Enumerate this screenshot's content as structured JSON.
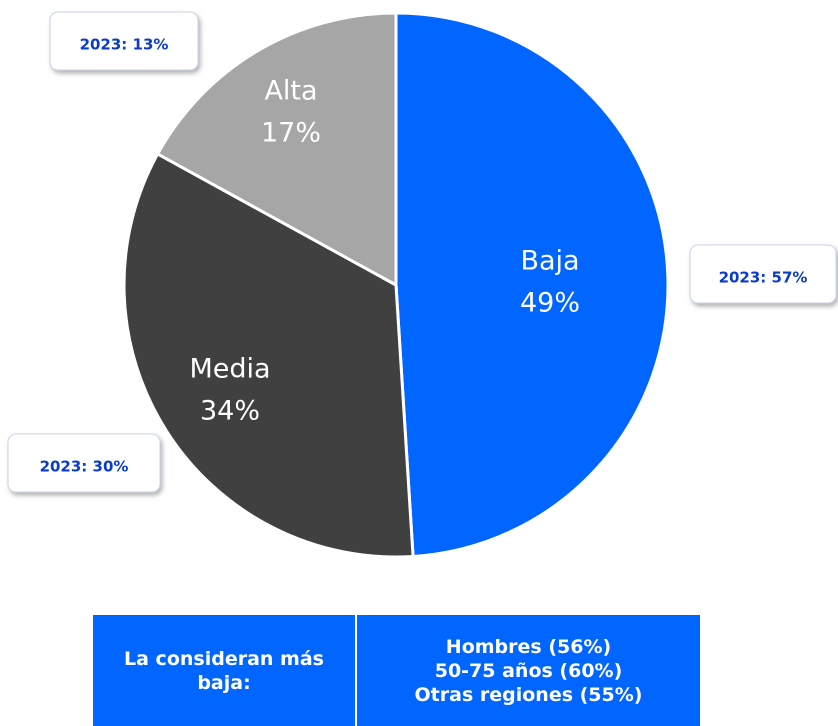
{
  "chart_data": {
    "type": "pie",
    "categories": [
      "Baja",
      "Media",
      "Alta"
    ],
    "values": [
      49,
      34,
      17
    ],
    "value_labels": [
      "49%",
      "34%",
      "17%"
    ],
    "colors": [
      "#0066ff",
      "#404040",
      "#a6a6a6"
    ],
    "annotations": [
      "2023: 57%",
      "2023: 30%",
      "2023: 13%"
    ]
  },
  "table": {
    "header": "La consideran más baja:",
    "items": [
      "Hombres (56%)",
      "50-75 años (60%)",
      "Otras regiones (55%)"
    ]
  }
}
